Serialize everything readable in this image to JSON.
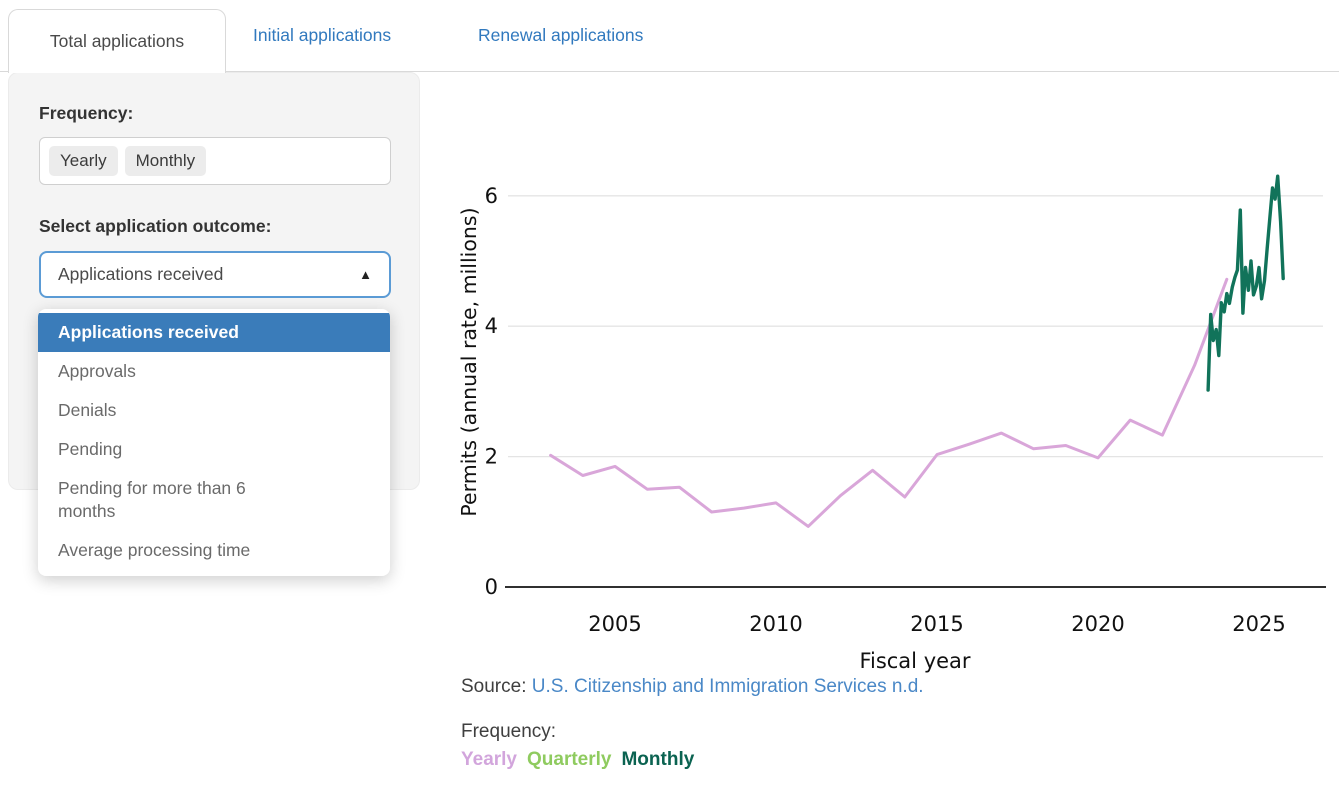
{
  "tabs": {
    "items": [
      {
        "label": "Total applications",
        "active": true
      },
      {
        "label": "Initial applications",
        "active": false
      },
      {
        "label": "Renewal applications",
        "active": false
      }
    ]
  },
  "panel": {
    "frequency_label": "Frequency:",
    "frequency_selected": [
      "Yearly",
      "Monthly"
    ],
    "outcome_label": "Select application outcome:",
    "select_value": "Applications received",
    "caret_icon": "▲",
    "dropdown_options": [
      {
        "label": "Applications received",
        "selected": true
      },
      {
        "label": "Approvals",
        "selected": false
      },
      {
        "label": "Denials",
        "selected": false
      },
      {
        "label": "Pending",
        "selected": false
      },
      {
        "label": "Pending for more than 6\nmonths",
        "selected": false
      },
      {
        "label": "Average processing time",
        "selected": false
      }
    ]
  },
  "chart_data": {
    "type": "line",
    "title": "",
    "xlabel": "Fiscal year",
    "ylabel": "Permits (annual rate, millions)",
    "xticks": [
      2005,
      2010,
      2015,
      2020,
      2025
    ],
    "yticks": [
      0,
      2,
      4,
      6
    ],
    "xlim": [
      2002.4,
      2026.4
    ],
    "ylim": [
      0,
      6.7
    ],
    "grid": true,
    "legend_position": "below",
    "series": [
      {
        "name": "Yearly",
        "color": "#D9A6D9",
        "x": [
          2003,
          2004,
          2005,
          2006,
          2007,
          2008,
          2009,
          2010,
          2011,
          2012,
          2013,
          2014,
          2015,
          2016,
          2017,
          2018,
          2019,
          2020,
          2021,
          2022,
          2023,
          2024
        ],
        "values": [
          2.02,
          1.71,
          1.85,
          1.5,
          1.53,
          1.15,
          1.21,
          1.29,
          0.93,
          1.4,
          1.79,
          1.38,
          2.03,
          2.19,
          2.36,
          2.12,
          2.17,
          1.98,
          2.56,
          2.33,
          3.4,
          4.72
        ]
      },
      {
        "name": "Monthly",
        "color": "#11735A",
        "x": [
          2023.42,
          2023.5,
          2023.58,
          2023.67,
          2023.75,
          2023.83,
          2023.92,
          2024.0,
          2024.08,
          2024.17,
          2024.25,
          2024.33,
          2024.42,
          2024.5,
          2024.58,
          2024.67,
          2024.75,
          2024.83,
          2024.92,
          2025.0,
          2025.08,
          2025.17,
          2025.25,
          2025.33,
          2025.42,
          2025.5,
          2025.58,
          2025.67,
          2025.75
        ],
        "values": [
          3.02,
          4.18,
          3.78,
          3.95,
          3.55,
          4.36,
          4.22,
          4.5,
          4.35,
          4.6,
          4.75,
          4.86,
          5.78,
          4.2,
          4.9,
          4.55,
          5.0,
          4.48,
          4.62,
          4.9,
          4.42,
          4.7,
          5.18,
          5.62,
          6.12,
          5.95,
          6.3,
          5.6,
          4.73
        ]
      }
    ]
  },
  "footer": {
    "source_prefix": "Source: ",
    "source_link": "U.S. Citizenship and Immigration Services n.d.",
    "frequency_caption": "Frequency:",
    "legend": [
      {
        "label": "Yearly",
        "color": "#D2A5DC"
      },
      {
        "label": "Quarterly",
        "color": "#8FCB5F"
      },
      {
        "label": "Monthly",
        "color": "#0B6351"
      }
    ]
  }
}
